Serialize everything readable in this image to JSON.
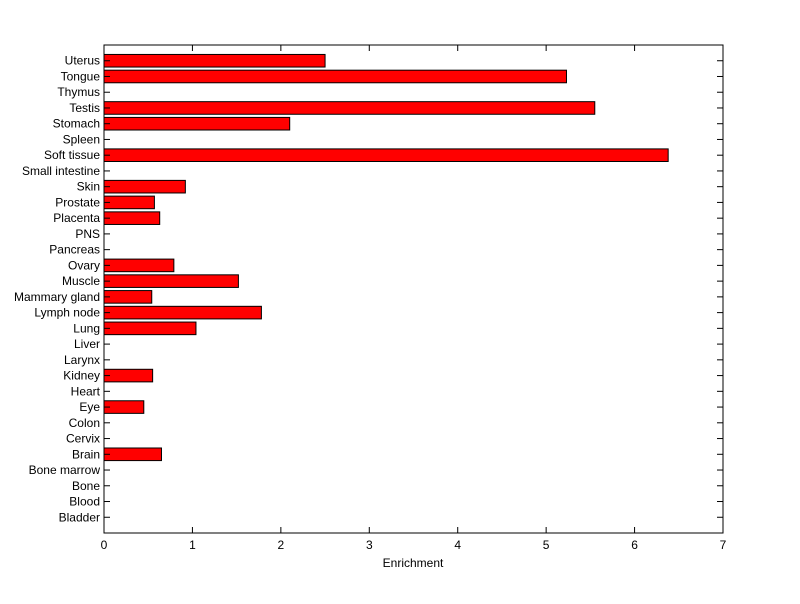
{
  "chart_data": {
    "type": "bar",
    "orientation": "horizontal",
    "xlabel": "Enrichment",
    "xlim": [
      0,
      7
    ],
    "xticks": [
      0,
      1,
      2,
      3,
      4,
      5,
      6,
      7
    ],
    "grid": false,
    "bar_color": "#ff0000",
    "categories": [
      "Uterus",
      "Tongue",
      "Thymus",
      "Testis",
      "Stomach",
      "Spleen",
      "Soft tissue",
      "Small intestine",
      "Skin",
      "Prostate",
      "Placenta",
      "PNS",
      "Pancreas",
      "Ovary",
      "Muscle",
      "Mammary gland",
      "Lymph node",
      "Lung",
      "Liver",
      "Larynx",
      "Kidney",
      "Heart",
      "Eye",
      "Colon",
      "Cervix",
      "Brain",
      "Bone marrow",
      "Bone",
      "Blood",
      "Bladder"
    ],
    "values": [
      2.5,
      5.23,
      0,
      5.55,
      2.1,
      0,
      6.38,
      0,
      0.92,
      0.57,
      0.63,
      0,
      0,
      0.79,
      1.52,
      0.54,
      1.78,
      1.04,
      0,
      0,
      0.55,
      0,
      0.45,
      0,
      0,
      0.65,
      0,
      0,
      0,
      0
    ]
  }
}
